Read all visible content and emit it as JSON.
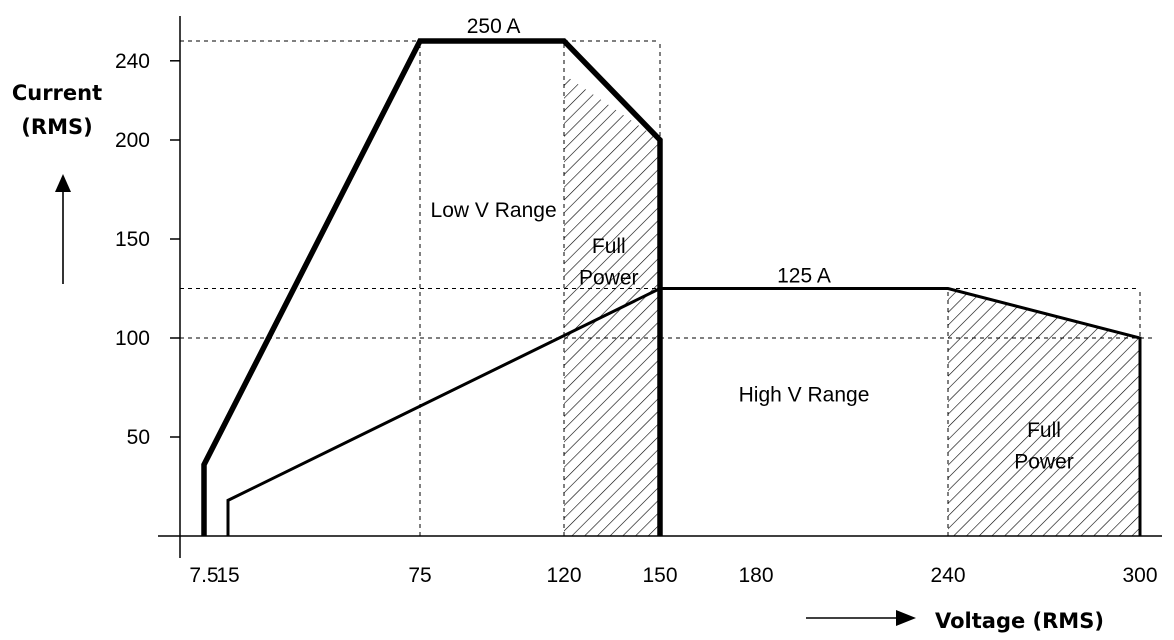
{
  "chart_data": {
    "type": "line",
    "xlabel": "Voltage (RMS)",
    "ylabel_line1": "Current",
    "ylabel_line2": "(RMS)",
    "xlim": [
      0,
      305
    ],
    "ylim": [
      0,
      250
    ],
    "x_ticks": [
      7.5,
      15,
      75,
      120,
      150,
      180,
      240,
      300
    ],
    "x_tick_labels": [
      "7.5",
      "15",
      "75",
      "120",
      "150",
      "180",
      "240",
      "300"
    ],
    "y_ticks": [
      50,
      100,
      150,
      200,
      240
    ],
    "y_tick_labels": [
      "50",
      "100",
      "150",
      "200",
      "240"
    ],
    "series": [
      {
        "style": "thick",
        "x": [
          7.5,
          7.5,
          75,
          120,
          150,
          150
        ],
        "y": [
          0,
          36,
          250,
          250,
          200,
          0
        ]
      },
      {
        "style": "medium",
        "x": [
          15,
          15,
          150,
          240,
          300,
          300
        ],
        "y": [
          0,
          18,
          125,
          125,
          100,
          0
        ]
      }
    ],
    "guides": [
      {
        "type": "h",
        "y": 250,
        "x": [
          0,
          150
        ]
      },
      {
        "type": "h",
        "y": 125,
        "x": [
          0,
          300
        ]
      },
      {
        "type": "h",
        "y": 100,
        "x": [
          0,
          305
        ]
      },
      {
        "type": "v",
        "x": 75,
        "y": [
          0,
          250
        ]
      },
      {
        "type": "v",
        "x": 120,
        "y": [
          0,
          250
        ]
      },
      {
        "type": "v",
        "x": 150,
        "y": [
          0,
          250
        ]
      },
      {
        "type": "v",
        "x": 240,
        "y": [
          0,
          125
        ]
      },
      {
        "type": "v",
        "x": 300,
        "y": [
          0,
          125
        ]
      }
    ],
    "hatched_regions": [
      {
        "x": [
          120,
          120,
          150,
          150
        ],
        "y": [
          0,
          233,
          200,
          0
        ]
      },
      {
        "x": [
          240,
          240,
          300,
          300
        ],
        "y": [
          0,
          125,
          100,
          0
        ]
      }
    ],
    "annotations": [
      {
        "text": "250 A",
        "x": 98,
        "y": 254
      },
      {
        "text": "Low V Range",
        "x": 98,
        "y": 161
      },
      {
        "text": "Full",
        "x": 134,
        "y": 143
      },
      {
        "text": "Power",
        "x": 134,
        "y": 127
      },
      {
        "text": "125 A",
        "x": 195,
        "y": 128
      },
      {
        "text": "High V Range",
        "x": 195,
        "y": 68
      },
      {
        "text": "Full",
        "x": 270,
        "y": 50
      },
      {
        "text": "Power",
        "x": 270,
        "y": 34
      }
    ],
    "grid": false,
    "legend": "none"
  }
}
